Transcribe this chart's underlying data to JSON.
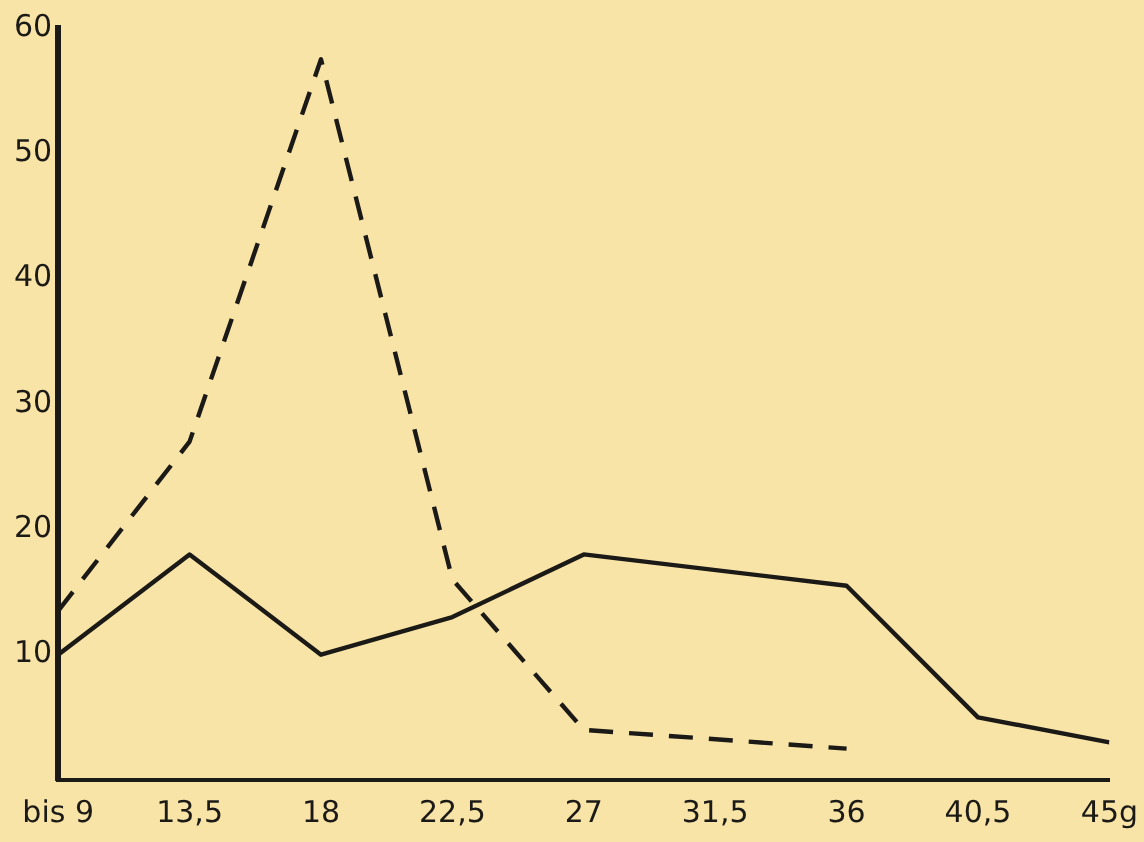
{
  "chart_data": {
    "type": "line",
    "x": [
      9,
      13.5,
      18,
      22.5,
      27,
      36,
      40.5,
      45
    ],
    "series": [
      {
        "color": "#1c1a16",
        "line_style": "solid",
        "values": [
          10,
          18,
          10,
          13,
          18,
          15.5,
          5,
          3
        ]
      },
      {
        "color": "#1c1a16",
        "line_style": "dashed",
        "values": [
          13.5,
          27,
          57.5,
          16,
          4,
          2.5,
          null,
          null
        ]
      }
    ],
    "xlim": [
      9,
      45
    ],
    "xticks": [
      {
        "value": 9,
        "label": "bis 9"
      },
      {
        "value": 13.5,
        "label": "13,5"
      },
      18,
      {
        "value": 22.5,
        "label": "22,5"
      },
      27,
      {
        "value": 31.5,
        "label": "31,5"
      },
      36,
      {
        "value": 40.5,
        "label": "40,5"
      },
      {
        "value": 45,
        "label": "45g"
      }
    ],
    "ylim": [
      0,
      60
    ],
    "yticks": [
      10,
      20,
      30,
      40,
      50,
      60
    ],
    "grid": false,
    "legend": false,
    "marker": "none"
  }
}
